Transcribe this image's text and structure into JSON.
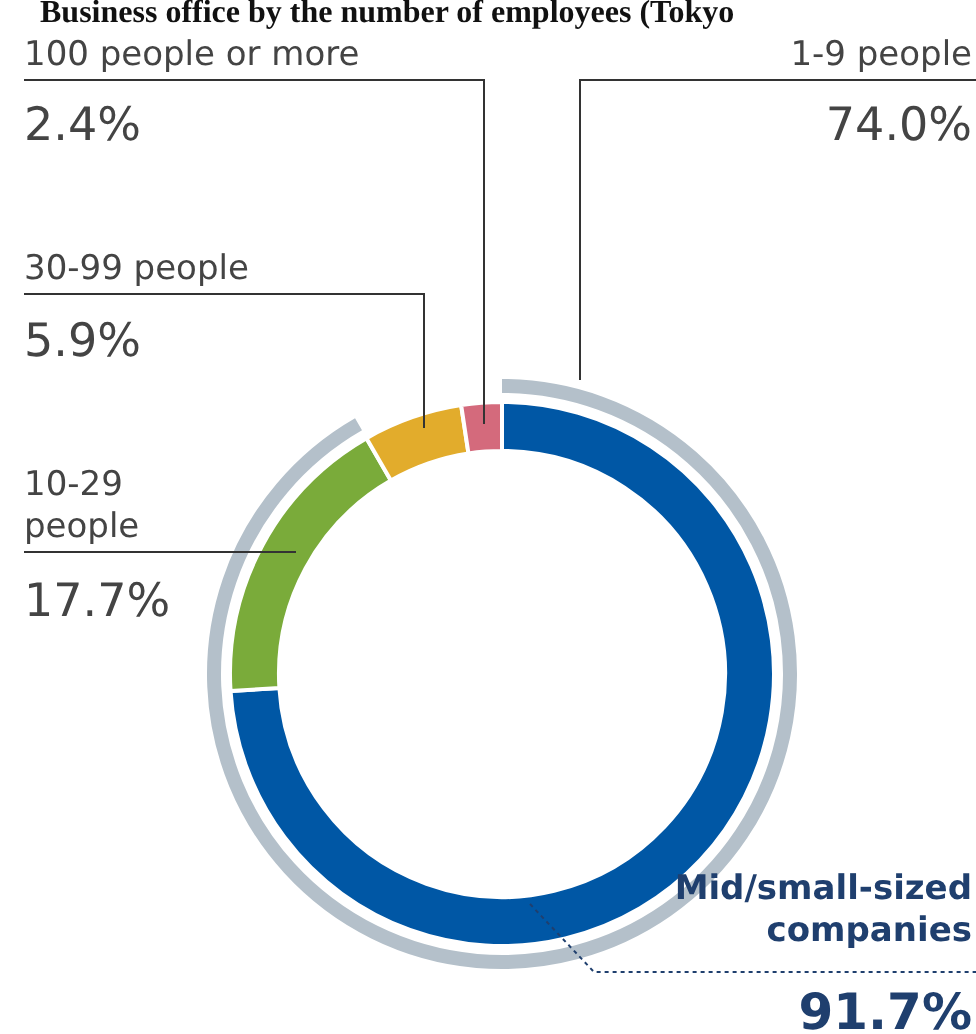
{
  "chart_data": {
    "type": "donut",
    "title": "Business office by the number of employees (Tokyo",
    "categories": [
      "1-9 people",
      "10-29 people",
      "30-99 people",
      "100 people or more"
    ],
    "values": [
      74.0,
      17.7,
      5.9,
      2.4
    ],
    "value_labels": [
      "74.0%",
      "17.7%",
      "5.9%",
      "2.4%"
    ],
    "colors": [
      "#0057a5",
      "#7aab3a",
      "#e2ac2c",
      "#d46a7c"
    ],
    "annotations": [
      "Mid/small-sized companies",
      "91.7%"
    ],
    "legend": false
  }
}
